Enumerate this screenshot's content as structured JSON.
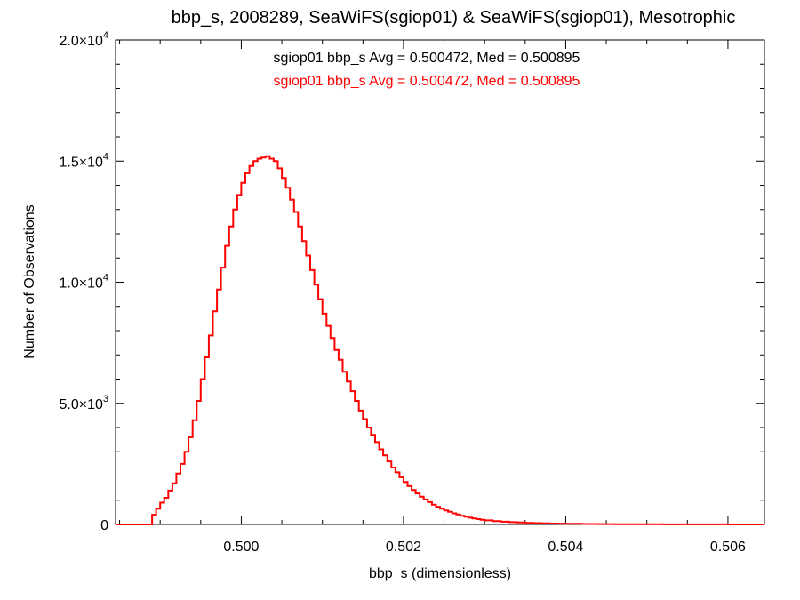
{
  "chart_data": {
    "type": "line",
    "title": "bbp_s, 2008289, SeaWiFS(sgiop01) & SeaWiFS(sgiop01), Mesotrophic",
    "xlabel": "bbp_s (dimensionless)",
    "ylabel": "Number of Observations",
    "xlim": [
      0.49845,
      0.50645
    ],
    "ylim": [
      0,
      20000
    ],
    "grid": false,
    "x_ticks": [
      {
        "value": 0.5,
        "label": "0.500"
      },
      {
        "value": 0.502,
        "label": "0.502"
      },
      {
        "value": 0.504,
        "label": "0.504"
      },
      {
        "value": 0.506,
        "label": "0.506"
      }
    ],
    "y_ticks": [
      {
        "value": 0,
        "mantissa": "0",
        "exponent": ""
      },
      {
        "value": 5000,
        "mantissa": "5.0×10",
        "exponent": "3"
      },
      {
        "value": 10000,
        "mantissa": "1.0×10",
        "exponent": "4"
      },
      {
        "value": 15000,
        "mantissa": "1.5×10",
        "exponent": "4"
      },
      {
        "value": 20000,
        "mantissa": "2.0×10",
        "exponent": "4"
      }
    ],
    "annotations": [
      {
        "text": "sgiop01 bbp_s Avg = 0.500472, Med = 0.500895",
        "color": "#000000"
      },
      {
        "text": "sgiop01 bbp_s Avg = 0.500472, Med = 0.500895",
        "color": "#ff0000"
      }
    ],
    "series": [
      {
        "color": "#ff0000",
        "style": "step",
        "points": [
          [
            0.49885,
            0
          ],
          [
            0.4989,
            400
          ],
          [
            0.49895,
            650
          ],
          [
            0.499,
            900
          ],
          [
            0.49905,
            1100
          ],
          [
            0.4991,
            1400
          ],
          [
            0.49915,
            1700
          ],
          [
            0.4992,
            2100
          ],
          [
            0.49925,
            2500
          ],
          [
            0.4993,
            3000
          ],
          [
            0.49935,
            3600
          ],
          [
            0.4994,
            4300
          ],
          [
            0.49945,
            5100
          ],
          [
            0.4995,
            6000
          ],
          [
            0.49955,
            6900
          ],
          [
            0.4996,
            7800
          ],
          [
            0.49965,
            8800
          ],
          [
            0.4997,
            9700
          ],
          [
            0.49975,
            10600
          ],
          [
            0.4998,
            11500
          ],
          [
            0.49985,
            12300
          ],
          [
            0.4999,
            13000
          ],
          [
            0.49995,
            13600
          ],
          [
            0.5,
            14100
          ],
          [
            0.50005,
            14500
          ],
          [
            0.5001,
            14800
          ],
          [
            0.50015,
            15000
          ],
          [
            0.5002,
            15100
          ],
          [
            0.50025,
            15150
          ],
          [
            0.5003,
            15200
          ],
          [
            0.50035,
            15100
          ],
          [
            0.5004,
            15000
          ],
          [
            0.50045,
            14700
          ],
          [
            0.5005,
            14300
          ],
          [
            0.50055,
            13900
          ],
          [
            0.5006,
            13400
          ],
          [
            0.50065,
            12900
          ],
          [
            0.5007,
            12300
          ],
          [
            0.50075,
            11700
          ],
          [
            0.5008,
            11100
          ],
          [
            0.50085,
            10500
          ],
          [
            0.5009,
            9900
          ],
          [
            0.50095,
            9300
          ],
          [
            0.501,
            8700
          ],
          [
            0.50105,
            8200
          ],
          [
            0.5011,
            7700
          ],
          [
            0.50115,
            7200
          ],
          [
            0.5012,
            6800
          ],
          [
            0.50125,
            6300
          ],
          [
            0.5013,
            5900
          ],
          [
            0.50135,
            5500
          ],
          [
            0.5014,
            5100
          ],
          [
            0.50145,
            4700
          ],
          [
            0.5015,
            4350
          ],
          [
            0.50155,
            4000
          ],
          [
            0.5016,
            3700
          ],
          [
            0.50165,
            3400
          ],
          [
            0.5017,
            3100
          ],
          [
            0.50175,
            2850
          ],
          [
            0.5018,
            2600
          ],
          [
            0.50185,
            2350
          ],
          [
            0.5019,
            2150
          ],
          [
            0.50195,
            1950
          ],
          [
            0.502,
            1750
          ],
          [
            0.50205,
            1580
          ],
          [
            0.5021,
            1420
          ],
          [
            0.50215,
            1280
          ],
          [
            0.5022,
            1150
          ],
          [
            0.50225,
            1030
          ],
          [
            0.5023,
            920
          ],
          [
            0.50235,
            820
          ],
          [
            0.5024,
            730
          ],
          [
            0.50245,
            650
          ],
          [
            0.5025,
            580
          ],
          [
            0.50255,
            520
          ],
          [
            0.5026,
            460
          ],
          [
            0.50265,
            410
          ],
          [
            0.5027,
            360
          ],
          [
            0.50275,
            320
          ],
          [
            0.5028,
            280
          ],
          [
            0.50285,
            250
          ],
          [
            0.5029,
            220
          ],
          [
            0.50295,
            195
          ],
          [
            0.503,
            170
          ],
          [
            0.5031,
            140
          ],
          [
            0.5032,
            115
          ],
          [
            0.5033,
            95
          ],
          [
            0.5034,
            80
          ],
          [
            0.5035,
            65
          ],
          [
            0.5036,
            55
          ],
          [
            0.5037,
            45
          ],
          [
            0.5038,
            38
          ],
          [
            0.5039,
            32
          ],
          [
            0.504,
            27
          ],
          [
            0.5042,
            20
          ],
          [
            0.5044,
            15
          ],
          [
            0.5046,
            11
          ],
          [
            0.5048,
            8
          ],
          [
            0.505,
            6
          ],
          [
            0.5052,
            5
          ],
          [
            0.5054,
            4
          ],
          [
            0.5056,
            3
          ],
          [
            0.5058,
            2
          ],
          [
            0.506,
            1
          ],
          [
            0.5062,
            1
          ],
          [
            0.50645,
            1
          ]
        ]
      }
    ]
  }
}
